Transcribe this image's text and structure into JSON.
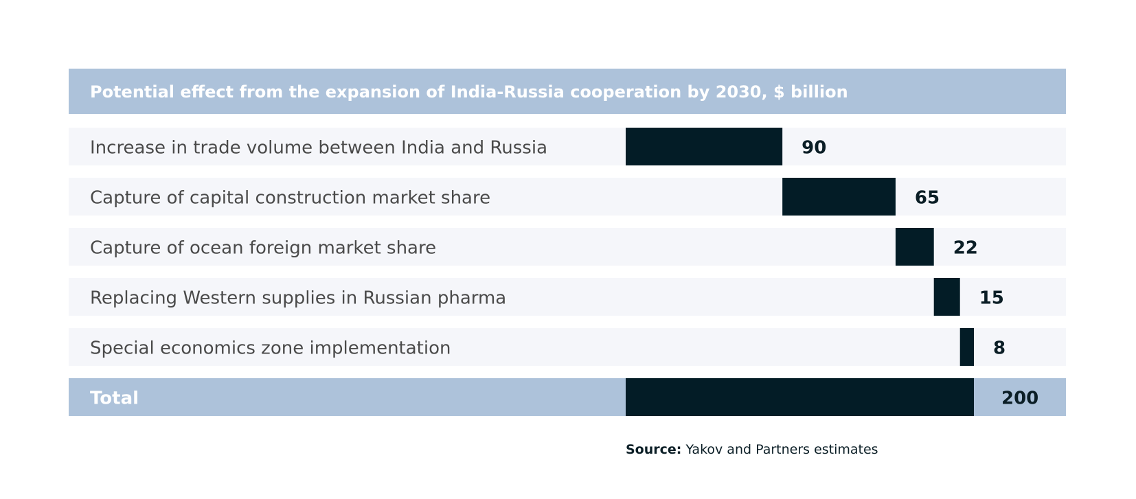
{
  "chart_data": {
    "type": "bar",
    "subtype": "waterfall-horizontal",
    "title": "Potential effect from the expansion of India-Russia cooperation by 2030, $ billion",
    "categories": [
      "Increase in trade volume between India and Russia",
      "Capture of capital construction market share",
      "Capture of ocean foreign market share",
      "Replacing Western supplies in Russian pharma",
      "Special economics zone implementation"
    ],
    "values": [
      90,
      65,
      22,
      15,
      8
    ],
    "total": {
      "label": "Total",
      "value": 200
    },
    "xlim": [
      0,
      200
    ],
    "grid": false,
    "legend": "none"
  },
  "source": {
    "label": "Source:",
    "text": "Yakov and Partners estimates"
  },
  "colors": {
    "header_bg": "#adc2da",
    "row_bg": "#f5f6fa",
    "bar": "#031c26",
    "text": "#4a4a4a"
  }
}
